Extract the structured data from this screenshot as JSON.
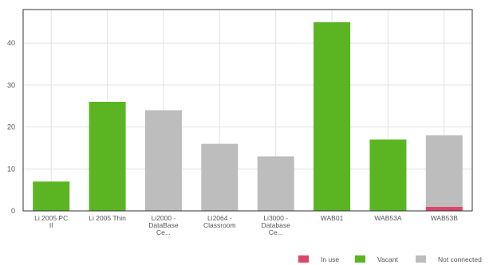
{
  "chart_data": {
    "type": "bar",
    "stacked": true,
    "categories": [
      [
        "Li 2005 PC",
        "II"
      ],
      [
        "Li 2005 Thin"
      ],
      [
        "Li2000 -",
        "DataBase",
        "Ce..."
      ],
      [
        "Li2064 -",
        "Classroom"
      ],
      [
        "Li3000 -",
        "Database",
        "Ce..."
      ],
      [
        "WAB01"
      ],
      [
        "WAB53A"
      ],
      [
        "WAB53B"
      ]
    ],
    "series": [
      {
        "name": "In use",
        "color": "#d9476b",
        "values": [
          0,
          0,
          0,
          0,
          0,
          0,
          0,
          1
        ]
      },
      {
        "name": "Vacant",
        "color": "#5bb523",
        "values": [
          7,
          26,
          0,
          0,
          0,
          45,
          17,
          0
        ]
      },
      {
        "name": "Not connected",
        "color": "#bdbdbd",
        "values": [
          0,
          0,
          24,
          16,
          13,
          0,
          0,
          17
        ]
      }
    ],
    "ylim": [
      0,
      48
    ],
    "yticks": [
      0,
      10,
      20,
      30,
      40
    ],
    "grid": true,
    "legend_position": "bottom-right"
  }
}
